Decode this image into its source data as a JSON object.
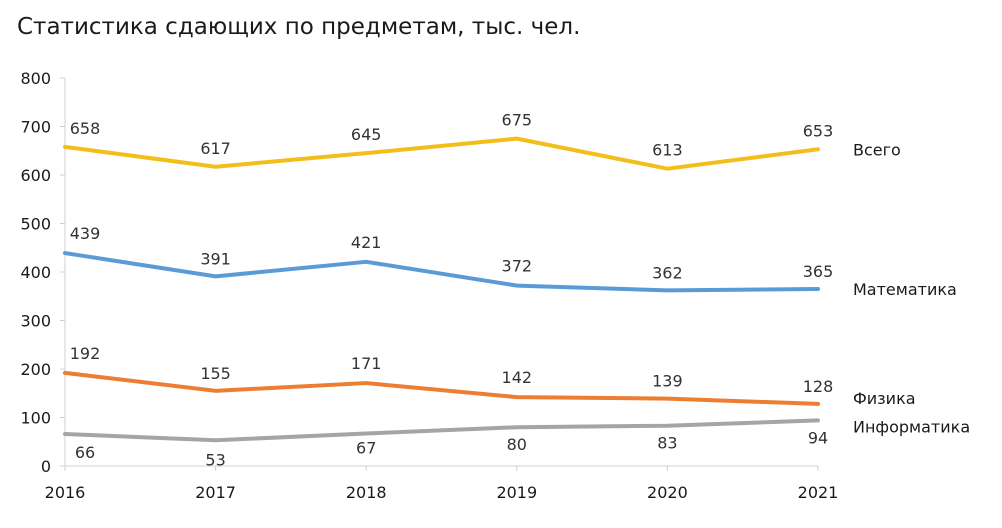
{
  "chart_data": {
    "type": "line",
    "title": "Статистика сдающих по предметам, тыс. чел.",
    "xlabel": "",
    "ylabel": "",
    "x": [
      "2016",
      "2017",
      "2018",
      "2019",
      "2020",
      "2021"
    ],
    "ylim": [
      0,
      800
    ],
    "yticks": [
      "0",
      "100",
      "200",
      "300",
      "400",
      "500",
      "600",
      "700",
      "800"
    ],
    "grid": false,
    "legend": "series names at line ends (right)",
    "series": [
      {
        "name": "Всего",
        "color": "#f2bf1a",
        "values": [
          658,
          617,
          645,
          675,
          613,
          653
        ],
        "labels": [
          "658",
          "617",
          "645",
          "675",
          "613",
          "653"
        ]
      },
      {
        "name": "Математика",
        "color": "#5b9bd5",
        "values": [
          439,
          391,
          421,
          372,
          362,
          365
        ],
        "labels": [
          "439",
          "391",
          "421",
          "372",
          "362",
          "365"
        ]
      },
      {
        "name": "Физика",
        "color": "#ed7d31",
        "values": [
          192,
          155,
          171,
          142,
          139,
          128
        ],
        "labels": [
          "192",
          "155",
          "171",
          "142",
          "139",
          "128"
        ]
      },
      {
        "name": "Информатика",
        "color": "#a5a5a5",
        "values": [
          66,
          53,
          67,
          80,
          83,
          94
        ],
        "labels": [
          "66",
          "53",
          "67",
          "80",
          "83",
          "94"
        ]
      }
    ]
  }
}
